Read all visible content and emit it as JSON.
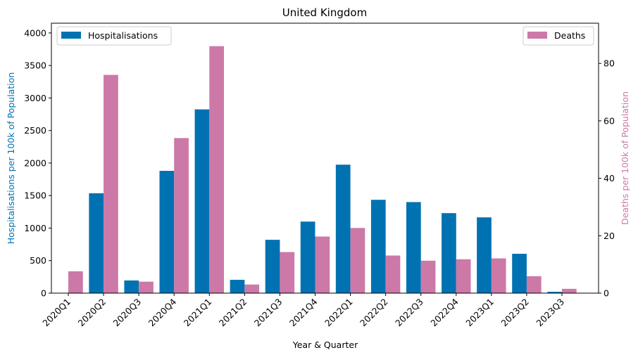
{
  "chart_data": {
    "type": "bar",
    "title": "United Kingdom",
    "xlabel": "Year & Quarter",
    "categories": [
      "2020Q1",
      "2020Q2",
      "2020Q3",
      "2020Q4",
      "2021Q1",
      "2021Q2",
      "2021Q3",
      "2021Q4",
      "2022Q1",
      "2022Q2",
      "2022Q3",
      "2022Q4",
      "2023Q1",
      "2023Q2",
      "2023Q3"
    ],
    "left_axis": {
      "label": "Hospitalisations per 100k of Population",
      "ylim": [
        0,
        4150
      ],
      "ticks": [
        0,
        500,
        1000,
        1500,
        2000,
        2500,
        3000,
        3500,
        4000
      ],
      "color": "#0072b2"
    },
    "right_axis": {
      "label": "Deaths per 100k of Population",
      "ylim": [
        0,
        94
      ],
      "ticks": [
        0,
        20,
        40,
        60,
        80
      ],
      "color": "#cc79a7"
    },
    "series": [
      {
        "name": "Hospitalisations",
        "axis": "left",
        "color": "#0072b2",
        "values": [
          0,
          1535,
          195,
          1880,
          2825,
          205,
          820,
          1100,
          1975,
          1435,
          1400,
          1230,
          1165,
          605,
          20
        ]
      },
      {
        "name": "Deaths",
        "axis": "right",
        "color": "#cc79a7",
        "values": [
          7.6,
          76,
          4.0,
          54,
          86,
          3.0,
          14.3,
          19.7,
          22.7,
          13.1,
          11.3,
          11.8,
          12.1,
          5.9,
          1.5
        ]
      }
    ],
    "legend": [
      {
        "label": "Hospitalisations",
        "placement": "upper-left"
      },
      {
        "label": "Deaths",
        "placement": "upper-right"
      }
    ],
    "grid": false
  }
}
